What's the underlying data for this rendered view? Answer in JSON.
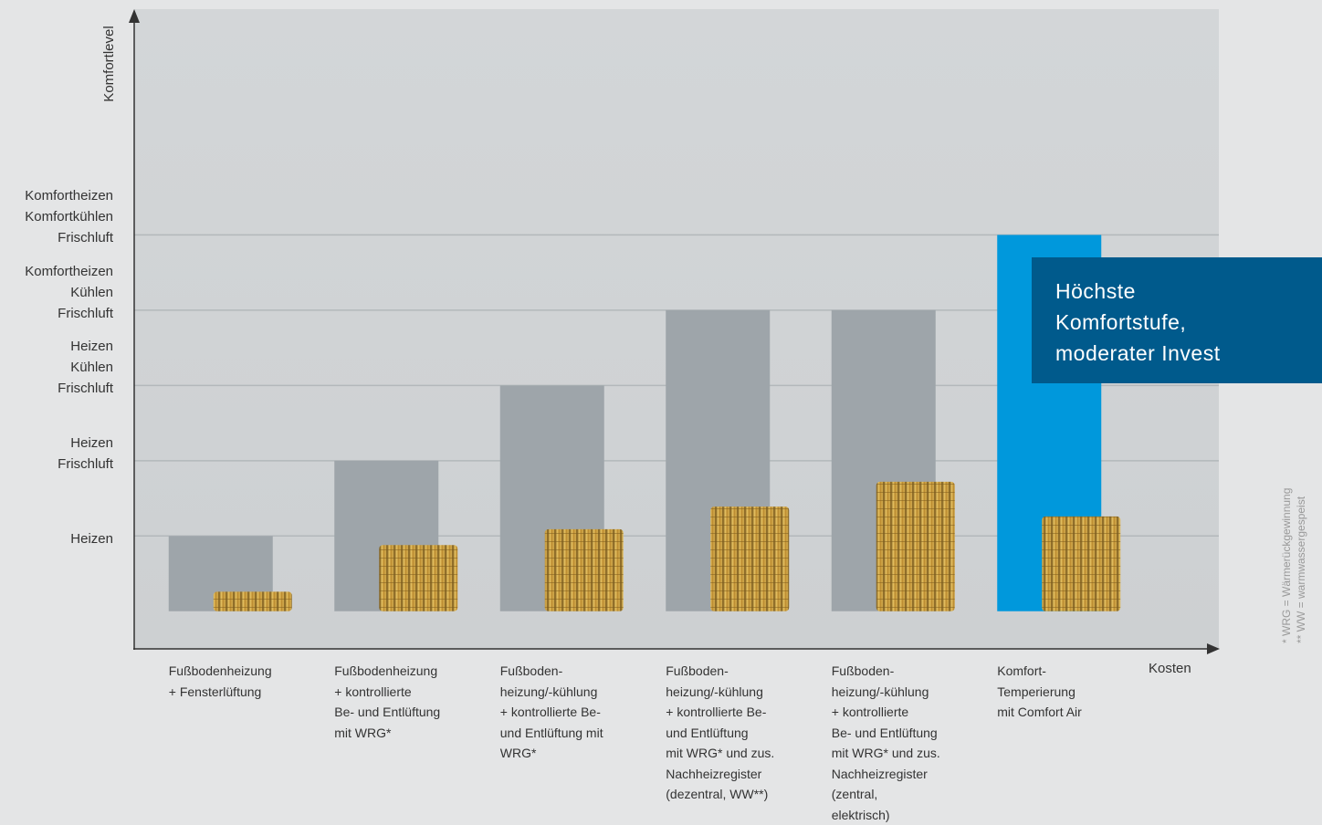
{
  "chart_data": {
    "type": "bar",
    "y_label": "Komfortlevel",
    "x_label": "Kosten",
    "categories": [
      "Fußbodenheizung\n+ Fensterlüftung",
      "Fußbodenheizung\n+ kontrollierte\nBe- und Entlüftung\nmit WRG*",
      "Fußboden-\nheizung/-kühlung\n+ kontrollierte Be-\nund Entlüftung mit\nWRG*",
      "Fußboden-\nheizung/-kühlung\n+ kontrollierte Be-\nund Entlüftung\nmit WRG* und zus.\nNachheizregister\n(dezentral, WW**)",
      "Fußboden-\nheizung/-kühlung\n+ kontrollierte\nBe- und Entlüftung\nmit WRG* und zus.\nNachheizregister\n(zentral,\nelektrisch)",
      "Komfort-\nTemperierung\nmit Comfort Air"
    ],
    "values": [
      1,
      2,
      3,
      4,
      4,
      5
    ],
    "colors": [
      "#9ea5aa",
      "#9ea5aa",
      "#9ea5aa",
      "#9ea5aa",
      "#9ea5aa",
      "#0098dc"
    ],
    "cost_values": [
      0.26,
      0.88,
      1.09,
      1.39,
      1.72,
      1.26
    ],
    "ylim": [
      -0.5,
      8
    ],
    "yticks": [
      {
        "value": 1,
        "label": "Heizen"
      },
      {
        "value": 2,
        "label": "Heizen\nFrischluft"
      },
      {
        "value": 3,
        "label": "Heizen\nKühlen\nFrischluft"
      },
      {
        "value": 4,
        "label": "Komfortheizen\nKühlen\nFrischluft"
      },
      {
        "value": 5,
        "label": "Komfortheizen\nKomfortkühlen\nFrischluft"
      }
    ],
    "grid": true,
    "annotation": "Höchste\nKomfortstufe,\nmoderater Invest",
    "footnotes": [
      "* WRG = Wärmerückgewinnung",
      "** WW = warmwassergespeist"
    ]
  }
}
